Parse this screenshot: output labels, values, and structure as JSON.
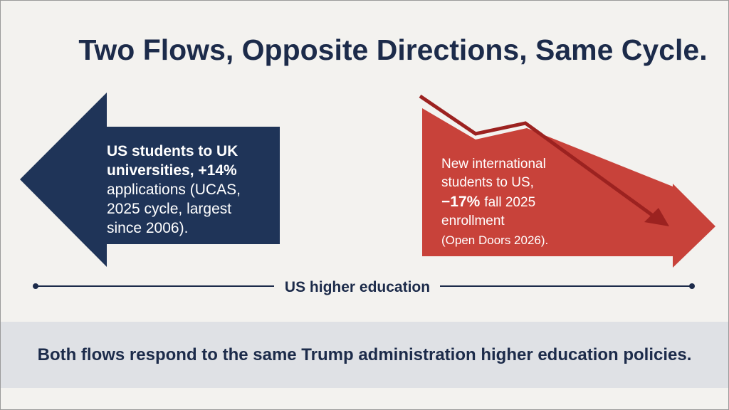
{
  "title": "Two Flows, Opposite Directions, Same Cycle.",
  "left_panel": {
    "lines": [
      "US students to UK",
      "universities, +14%",
      "applications (UCAS,",
      "2025 cycle, largest",
      "since 2006)."
    ]
  },
  "right_panel": {
    "lines": [
      "New international",
      "students to US,",
      [
        "−17%",
        "fall 2025"
      ],
      "enrollment",
      "(Open Doors 2026)."
    ]
  },
  "axis_label": "US higher education",
  "footer": "Both flows respond to the same Trump administration higher education policies."
}
